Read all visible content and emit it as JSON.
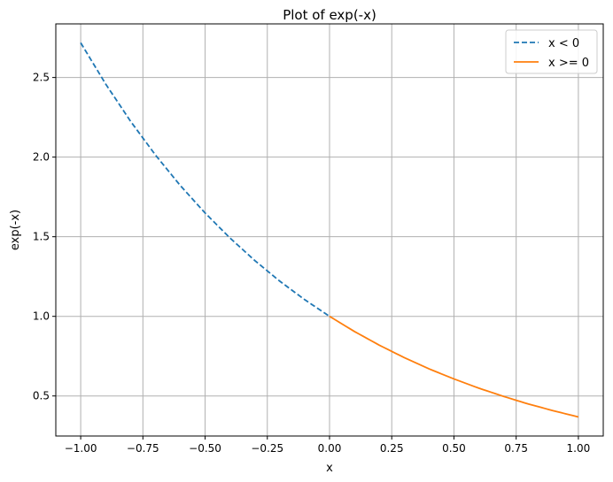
{
  "chart_data": {
    "type": "line",
    "title": "Plot of exp(-x)",
    "xlabel": "x",
    "ylabel": "exp(-x)",
    "xlim": [
      -1.1,
      1.1
    ],
    "ylim": [
      0.2485,
      2.8367
    ],
    "grid": true,
    "legend_position": "top-right",
    "x_ticks": [
      -1.0,
      -0.75,
      -0.5,
      -0.25,
      0.0,
      0.25,
      0.5,
      0.75,
      1.0
    ],
    "x_tick_labels": [
      "−1.00",
      "−0.75",
      "−0.50",
      "−0.25",
      "0.00",
      "0.25",
      "0.50",
      "0.75",
      "1.00"
    ],
    "y_ticks": [
      0.5,
      1.0,
      1.5,
      2.0,
      2.5
    ],
    "y_tick_labels": [
      "0.5",
      "1.0",
      "1.5",
      "2.0",
      "2.5"
    ],
    "series": [
      {
        "name": "x < 0",
        "color": "#1f77b4",
        "style": "dashed",
        "x": [
          -1.0,
          -0.9,
          -0.8,
          -0.7,
          -0.6,
          -0.5,
          -0.4,
          -0.3,
          -0.2,
          -0.1,
          0.0
        ],
        "y": [
          2.718,
          2.46,
          2.226,
          2.014,
          1.822,
          1.649,
          1.492,
          1.35,
          1.221,
          1.105,
          1.0
        ]
      },
      {
        "name": "x >= 0",
        "color": "#ff7f0e",
        "style": "solid",
        "x": [
          0.0,
          0.1,
          0.2,
          0.3,
          0.4,
          0.5,
          0.6,
          0.7,
          0.8,
          0.9,
          1.0
        ],
        "y": [
          1.0,
          0.905,
          0.819,
          0.741,
          0.67,
          0.607,
          0.549,
          0.497,
          0.449,
          0.407,
          0.368
        ]
      }
    ]
  }
}
